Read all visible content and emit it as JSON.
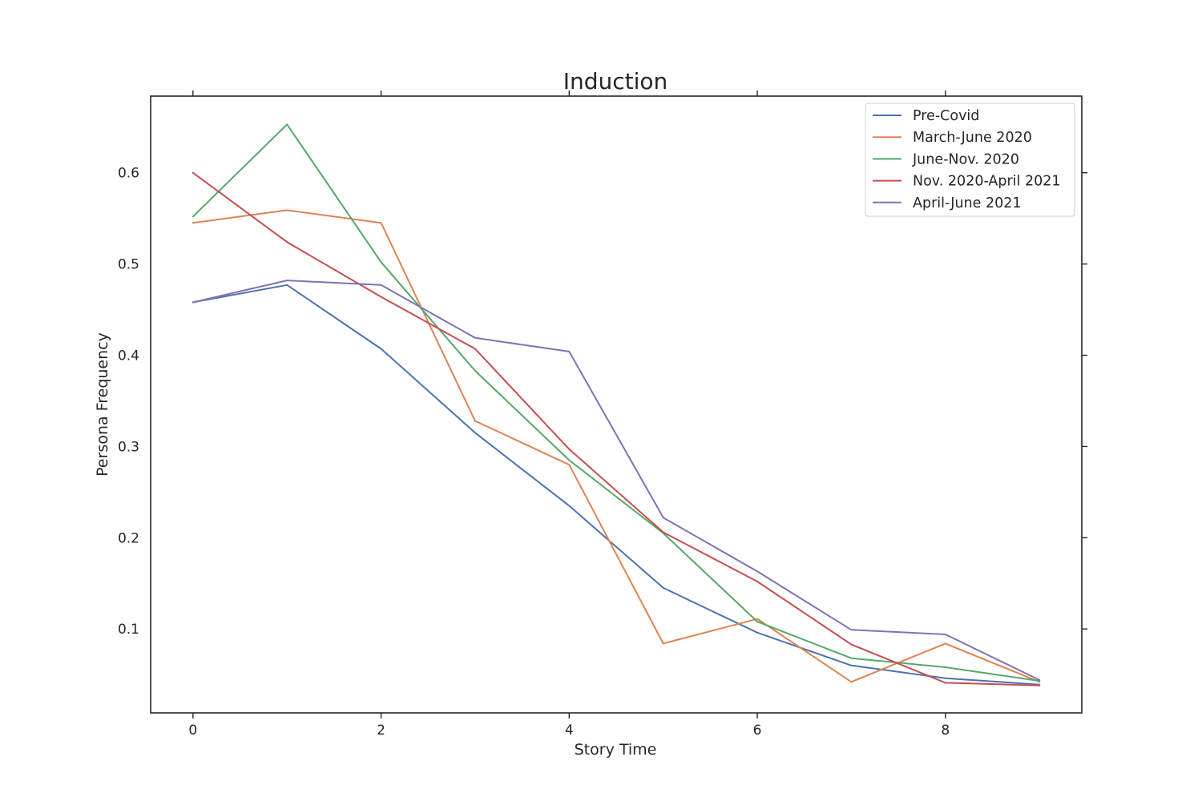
{
  "chart_data": {
    "type": "line",
    "title": "Induction",
    "xlabel": "Story Time",
    "ylabel": "Persona Frequency",
    "x": [
      0,
      1,
      2,
      3,
      4,
      5,
      6,
      7,
      8,
      9
    ],
    "xlim": [
      -0.45,
      9.45
    ],
    "ylim": [
      0.008,
      0.684
    ],
    "xticks": [
      0,
      2,
      4,
      6,
      8
    ],
    "yticks": [
      0.1,
      0.2,
      0.3,
      0.4,
      0.5,
      0.6
    ],
    "xtick_labels": [
      "0",
      "2",
      "4",
      "6",
      "8"
    ],
    "ytick_labels": [
      "0.1",
      "0.2",
      "0.3",
      "0.4",
      "0.5",
      "0.6"
    ],
    "grid": false,
    "legend_position": "top-right",
    "series": [
      {
        "name": "Pre-Covid",
        "color": "#4c72b0",
        "values": [
          0.458,
          0.477,
          0.407,
          0.315,
          0.235,
          0.145,
          0.096,
          0.06,
          0.046,
          0.039
        ]
      },
      {
        "name": "March-June 2020",
        "color": "#dd8452",
        "values": [
          0.545,
          0.559,
          0.545,
          0.328,
          0.28,
          0.084,
          0.111,
          0.042,
          0.084,
          0.042
        ]
      },
      {
        "name": "June-Nov. 2020",
        "color": "#55a868",
        "values": [
          0.552,
          0.653,
          0.502,
          0.383,
          0.285,
          0.205,
          0.108,
          0.068,
          0.058,
          0.043
        ]
      },
      {
        "name": "Nov. 2020-April 2021",
        "color": "#c44e52",
        "values": [
          0.6,
          0.524,
          0.464,
          0.407,
          0.297,
          0.206,
          0.152,
          0.083,
          0.041,
          0.038
        ]
      },
      {
        "name": "April-June 2021",
        "color": "#8172b3",
        "values": [
          0.458,
          0.482,
          0.477,
          0.419,
          0.404,
          0.222,
          0.163,
          0.099,
          0.094,
          0.044
        ]
      }
    ]
  }
}
